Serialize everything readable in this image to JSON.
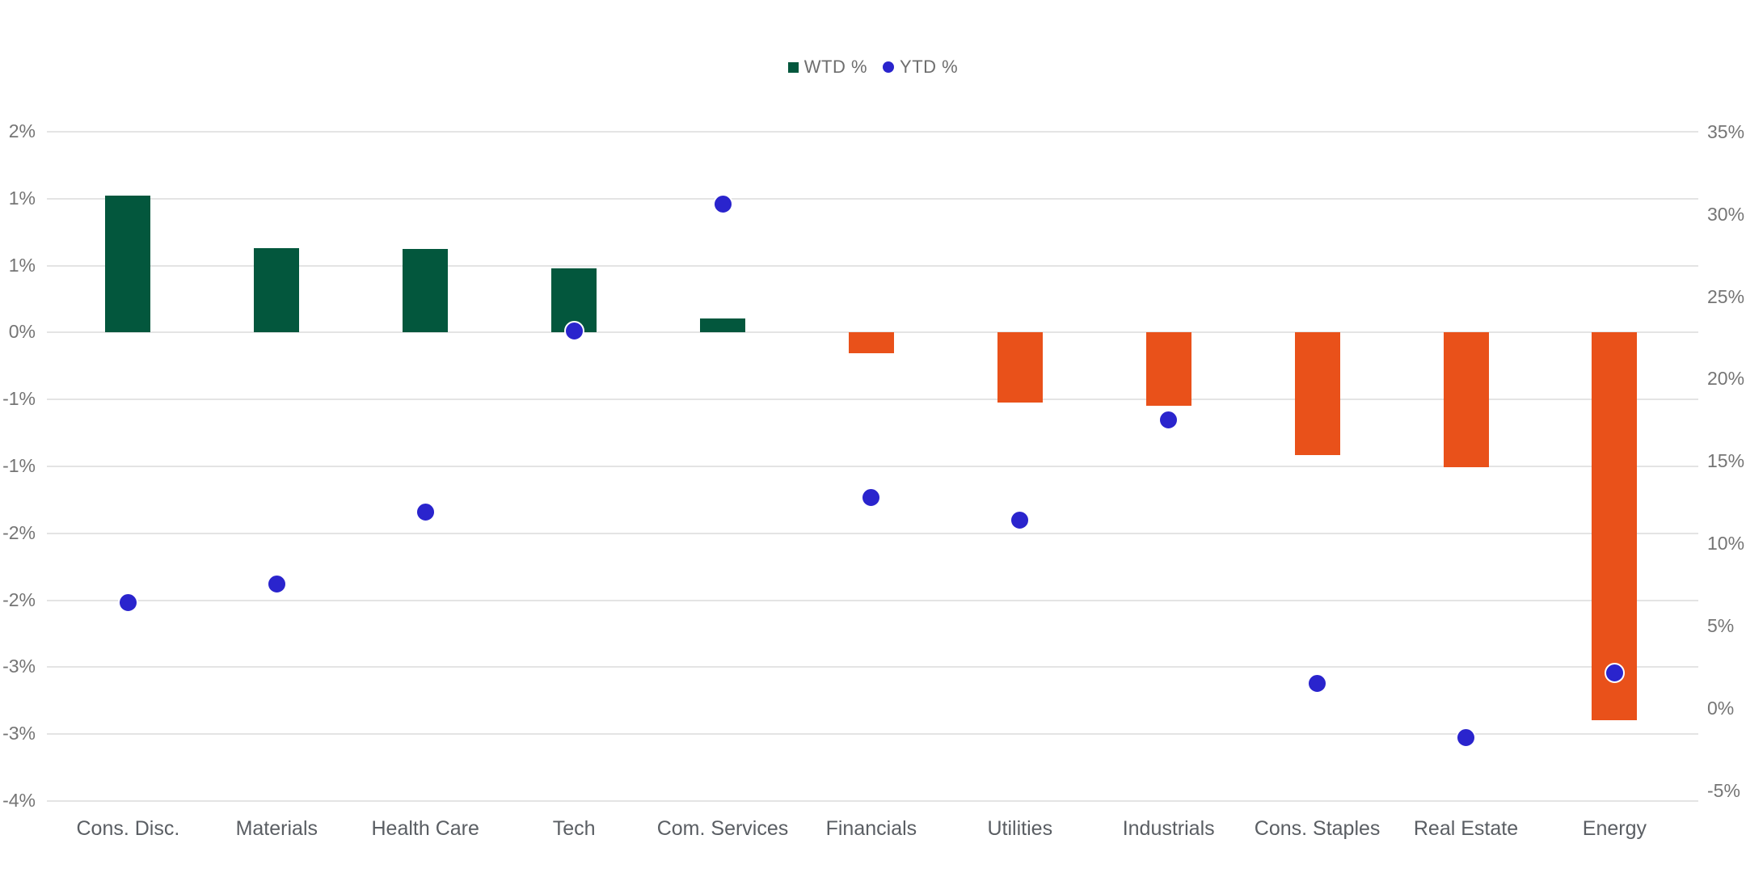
{
  "page": {
    "background": "#ffffff",
    "has_title": false
  },
  "legend": {
    "position": "top-center",
    "items": [
      {
        "label": "WTD %",
        "swatch": "square",
        "swatch_name": "green-square-icon",
        "color": "#03573d"
      },
      {
        "label": "YTD %",
        "swatch": "circle",
        "swatch_name": "blue-circle-icon",
        "color": "#2a24cd"
      }
    ]
  },
  "chart_data": {
    "type": "combo-bar-scatter",
    "title": "",
    "categories": [
      "Cons. Disc.",
      "Materials",
      "Health Care",
      "Tech",
      "Com. Services",
      "Financials",
      "Utilities",
      "Industrials",
      "Cons. Staples",
      "Real Estate",
      "Energy"
    ],
    "series": [
      {
        "name": "WTD %",
        "type": "bar",
        "axis": "left",
        "values": [
          1.17,
          0.72,
          0.71,
          0.55,
          0.12,
          -0.18,
          -0.6,
          -0.63,
          -1.05,
          -1.15,
          -3.31
        ],
        "color_positive": "#03573d",
        "color_negative": "#e9511a"
      },
      {
        "name": "YTD %",
        "type": "scatter",
        "axis": "right",
        "values": [
          6.4,
          7.5,
          11.9,
          22.9,
          30.6,
          12.8,
          11.4,
          17.5,
          1.5,
          -1.8,
          2.1
        ],
        "color": "#2a24cd",
        "marker": "circle-with-white-ring"
      }
    ],
    "left_axis": {
      "tick_labels": [
        "2%",
        "1%",
        "1%",
        "0%",
        "-1%",
        "-1%",
        "-2%",
        "-2%",
        "-3%",
        "-3%",
        "-4%"
      ],
      "min": -4.0,
      "max": 1.714,
      "tick_step": 0.5714,
      "note": "labels are rounded to whole percents"
    },
    "right_axis": {
      "tick_labels": [
        "35%",
        "30%",
        "25%",
        "20%",
        "15%",
        "10%",
        "5%",
        "0%",
        "-5%"
      ],
      "min": -5,
      "max": 35,
      "tick_step": 5
    },
    "grid": true,
    "legend_position": "top-center"
  },
  "colors": {
    "bar_positive": "#03573d",
    "bar_negative": "#e9511a",
    "dot": "#2a24cd",
    "gridline": "#e4e4e4",
    "axis_tick_text": "#757575",
    "category_text": "#5a5e63",
    "legend_text": "#6e6e6e",
    "background": "#ffffff"
  }
}
